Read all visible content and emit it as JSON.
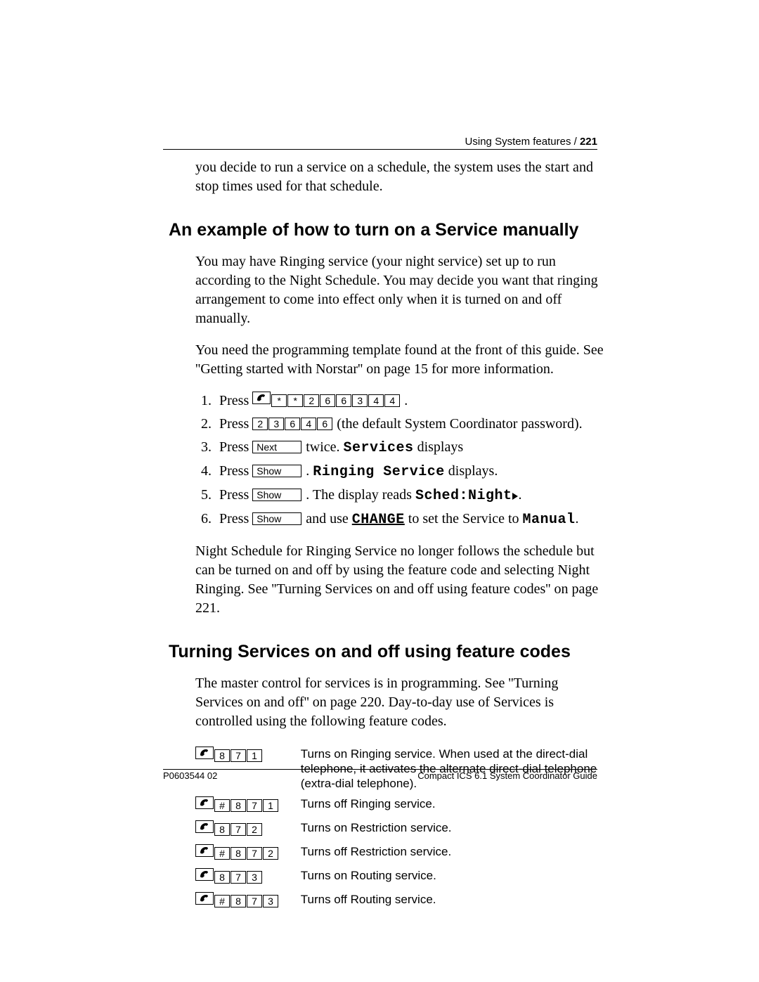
{
  "header": {
    "section": "Using System features",
    "sep": " / ",
    "page": "221"
  },
  "intro": "you decide to run a service on a schedule, the system uses the start and stop times used for that schedule.",
  "s1": {
    "title": "An example of how to turn on a Service manually",
    "p1": "You may have Ringing service (your night service) set up to run according to the Night Schedule. You may decide you want that ringing arrangement to come into effect only when it is turned on and off manually.",
    "p2": "You need the programming template found at the front of this guide. See ''Getting started with Norstar'' on page 15 for more information.",
    "steps": {
      "s1": {
        "a": "Press ",
        "keys": [
          "*",
          "*",
          "2",
          "6",
          "6",
          "3",
          "4",
          "4"
        ],
        "b": " ."
      },
      "s2": {
        "a": "Press ",
        "keys": [
          "2",
          "3",
          "6",
          "4",
          "6"
        ],
        "b": " (the default System Coordinator password)."
      },
      "s3": {
        "a": "Press ",
        "btn": "Next",
        "b": " twice. ",
        "lcd": "Services",
        "c": " displays"
      },
      "s4": {
        "a": "Press ",
        "btn": "Show",
        "b": " . ",
        "lcd": "Ringing Service",
        "c": " displays."
      },
      "s5": {
        "a": "Press ",
        "btn": "Show",
        "b": " . The display reads ",
        "lcd": "Sched:Night",
        "c": "."
      },
      "s6": {
        "a": "Press ",
        "btn": "Show",
        "b": " and use ",
        "lcd1": "CHANGE",
        "c": " to set the Service to ",
        "lcd2": "Manual",
        "d": "."
      }
    },
    "p3": "Night Schedule for Ringing Service no longer follows the schedule but can be turned on and off by using the feature code and selecting Night Ringing. See ''Turning Services on and off using feature codes'' on page 221."
  },
  "s2": {
    "title": "Turning Services on and off using feature codes",
    "p1": "The master control for services is in programming. See ''Turning Services on and off'' on page 220. Day-to-day use of Services is controlled using the following feature codes.",
    "rows": [
      {
        "keys": [
          "8",
          "7",
          "1"
        ],
        "hash": false,
        "desc": "Turns on Ringing service. When used at the direct-dial telephone, it activates the alternate direct-dial telephone (extra-dial telephone)."
      },
      {
        "keys": [
          "8",
          "7",
          "1"
        ],
        "hash": true,
        "desc": "Turns off Ringing service."
      },
      {
        "keys": [
          "8",
          "7",
          "2"
        ],
        "hash": false,
        "desc": "Turns on Restriction service."
      },
      {
        "keys": [
          "8",
          "7",
          "2"
        ],
        "hash": true,
        "desc": "Turns off Restriction service."
      },
      {
        "keys": [
          "8",
          "7",
          "3"
        ],
        "hash": false,
        "desc": "Turns on Routing service."
      },
      {
        "keys": [
          "8",
          "7",
          "3"
        ],
        "hash": true,
        "desc": "Turns off Routing service."
      }
    ]
  },
  "footer": {
    "left": "P0603544   02",
    "right": "Compact ICS 6.1 System Coordinator Guide"
  }
}
